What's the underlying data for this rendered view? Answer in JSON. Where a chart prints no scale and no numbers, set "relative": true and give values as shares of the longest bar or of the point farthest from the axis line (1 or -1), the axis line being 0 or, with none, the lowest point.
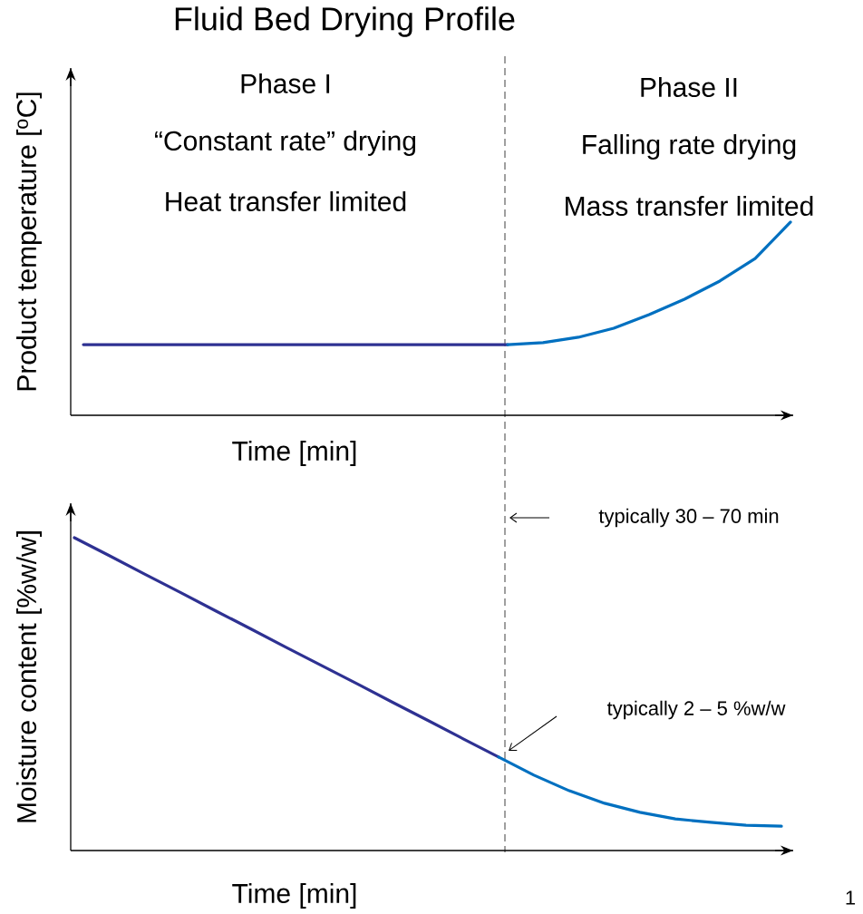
{
  "chart_data": [
    {
      "type": "line",
      "title": "Fluid Bed Drying Profile",
      "xlabel": "Time [min]",
      "ylabel": "Product temperature [$^{o}$C]",
      "relative": true,
      "categories": [
        null,
        null,
        null,
        null,
        null,
        null,
        null,
        null,
        null,
        null,
        null,
        null,
        null,
        null,
        null,
        null,
        null,
        null,
        null,
        null,
        null
      ],
      "series": [
        {
          "color": "#2e3192",
          "values": [
            0.366,
            0.366,
            0.366,
            0.366,
            0.366,
            0.366,
            0.366,
            0.366,
            0.366,
            0.366,
            0.366,
            0.366,
            0.366,
            null,
            null,
            null,
            null,
            null,
            null,
            null,
            null
          ]
        },
        {
          "color": "#0070c0",
          "values": [
            null,
            null,
            null,
            null,
            null,
            null,
            null,
            null,
            null,
            null,
            null,
            null,
            0.366,
            0.376,
            0.404,
            0.451,
            0.521,
            0.601,
            0.695,
            0.812,
            1
          ]
        }
      ],
      "annotations": [
        "Phase I",
        "“Constant rate” drying",
        "Heat transfer limited",
        "Phase II",
        "Falling rate drying",
        "Mass transfer limited"
      ]
    },
    {
      "type": "line",
      "xlabel": "Time [min]",
      "ylabel": "Moisture content [%w/w]",
      "relative": true,
      "categories": [
        null,
        null,
        null,
        null,
        null,
        null,
        null,
        null,
        null,
        null,
        null,
        null,
        null,
        null,
        null,
        null,
        null,
        null,
        null,
        null,
        null
      ],
      "series": [
        {
          "color": "#2e3192",
          "values": [
            1,
            0.942,
            0.883,
            0.825,
            0.766,
            0.708,
            0.649,
            0.591,
            0.533,
            0.474,
            0.416,
            0.357,
            0.299,
            null,
            null,
            null,
            null,
            null,
            null,
            null,
            null
          ]
        },
        {
          "color": "#0070c0",
          "values": [
            null,
            null,
            null,
            null,
            null,
            null,
            null,
            null,
            null,
            null,
            null,
            null,
            0.299,
            0.241,
            0.191,
            0.151,
            0.122,
            0.101,
            0.09,
            0.081,
            0.078
          ]
        }
      ],
      "annotations": [
        "typically 30 – 70 min",
        "typically 2 – 5 %w/w",
        "1"
      ]
    }
  ]
}
